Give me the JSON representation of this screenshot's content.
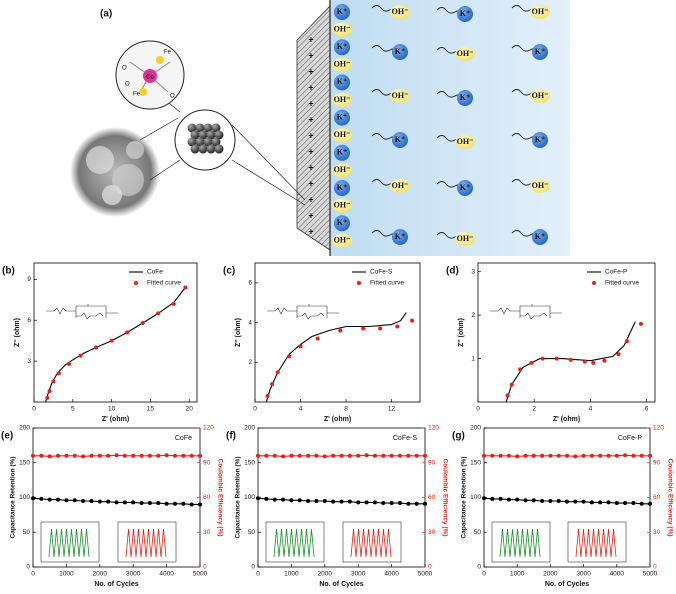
{
  "diagram": {
    "label": "(a)",
    "cation": "K⁺",
    "anion": "OH⁻",
    "atoms": [
      "O",
      "Fe",
      "Co",
      "Fe",
      "O",
      "O"
    ]
  },
  "chart_data": [
    {
      "type": "line",
      "label": "(b)",
      "xlabel": "Z' (ohm)",
      "ylabel": "Z'' (ohm)",
      "xlim": [
        0,
        21
      ],
      "ylim": [
        0,
        10.2
      ],
      "xticks": [
        0,
        5,
        10,
        15,
        20
      ],
      "yticks": [
        3,
        6,
        9
      ],
      "legend": "upper right",
      "series": [
        {
          "name": "CoFe",
          "color": "#000000",
          "style": "line",
          "x": [
            1.5,
            1.8,
            2.3,
            3,
            4,
            5,
            6.5,
            8,
            10,
            12,
            14,
            16,
            18,
            19.5
          ],
          "values": [
            0,
            0.6,
            1.4,
            2.1,
            2.7,
            3.1,
            3.6,
            4,
            4.5,
            5.1,
            5.8,
            6.5,
            7.3,
            8.4
          ]
        },
        {
          "name": "Fitted curve",
          "color": "#e32119",
          "style": "markers",
          "x": [
            1.7,
            2,
            2.5,
            3.2,
            4.5,
            6,
            8,
            10,
            12,
            14,
            16,
            18,
            19.5
          ],
          "values": [
            0.3,
            0.8,
            1.5,
            2.1,
            2.8,
            3.4,
            4,
            4.5,
            5.1,
            5.8,
            6.5,
            7.2,
            8.4
          ]
        }
      ]
    },
    {
      "type": "line",
      "label": "(c)",
      "xlabel": "Z' (ohm)",
      "ylabel": "Z'' (ohm)",
      "xlim": [
        0,
        14.5
      ],
      "ylim": [
        0,
        7
      ],
      "xticks": [
        0,
        4,
        8,
        12
      ],
      "yticks": [
        2,
        4,
        6
      ],
      "legend": "upper right",
      "series": [
        {
          "name": "CoFe-S",
          "color": "#000000",
          "style": "line",
          "x": [
            1,
            1.3,
            2,
            3,
            4,
            5,
            6.5,
            8,
            10,
            12,
            12.8,
            13.3
          ],
          "values": [
            0,
            0.6,
            1.5,
            2.4,
            2.9,
            3.3,
            3.6,
            3.8,
            3.8,
            3.9,
            4.1,
            4.5
          ]
        },
        {
          "name": "Fitted curve",
          "color": "#e32119",
          "style": "markers",
          "x": [
            1.1,
            1.5,
            2,
            3,
            4,
            5.5,
            7.5,
            9.5,
            11,
            12.5,
            13.8
          ],
          "values": [
            0.3,
            0.9,
            1.5,
            2.3,
            2.8,
            3.2,
            3.6,
            3.7,
            3.7,
            3.8,
            4.1
          ]
        }
      ]
    },
    {
      "type": "line",
      "label": "(d)",
      "xlabel": "Z' (ohm)",
      "ylabel": "Z'' (ohm)",
      "xlim": [
        0,
        6.3
      ],
      "ylim": [
        0,
        3.2
      ],
      "xticks": [
        0,
        2,
        4,
        6
      ],
      "yticks": [
        1,
        2,
        3
      ],
      "legend": "upper right",
      "series": [
        {
          "name": "CoFe-P",
          "color": "#000000",
          "style": "line",
          "x": [
            1,
            1.2,
            1.6,
            2.2,
            3,
            4,
            4.8,
            5.2,
            5.6
          ],
          "values": [
            0,
            0.4,
            0.8,
            1,
            1,
            0.95,
            1.05,
            1.3,
            1.85
          ]
        },
        {
          "name": "Fitted curve",
          "color": "#e32119",
          "style": "markers",
          "x": [
            1.05,
            1.2,
            1.5,
            1.9,
            2.3,
            2.8,
            3.3,
            3.8,
            4.1,
            4.5,
            5,
            5.3,
            5.8
          ],
          "values": [
            0.15,
            0.4,
            0.75,
            0.9,
            1,
            1,
            0.97,
            0.93,
            0.9,
            0.95,
            1.1,
            1.4,
            1.8
          ]
        }
      ]
    },
    {
      "type": "dual",
      "label": "(e)",
      "annotation": "CoFe",
      "xlabel": "No. of Cycles",
      "ylabel": "Capacitance Retention (%)",
      "y2label": "Coulombic Efficiency (%)",
      "xlim": [
        0,
        5000
      ],
      "ylim": [
        0,
        200
      ],
      "y2lim": [
        0,
        120
      ],
      "xticks": [
        0,
        1000,
        2000,
        3000,
        4000,
        5000
      ],
      "yticks": [
        0,
        50,
        100,
        150,
        200
      ],
      "y2ticks": [
        0,
        30,
        60,
        90,
        120
      ],
      "x": [
        0,
        250,
        500,
        750,
        1000,
        1250,
        1500,
        1750,
        2000,
        2250,
        2500,
        2750,
        3000,
        3250,
        3500,
        3750,
        4000,
        4250,
        4500,
        4750,
        5000
      ],
      "series": [
        {
          "color": "#000000",
          "style": "line-markers",
          "values": [
            99,
            98,
            97,
            97,
            96,
            96,
            95,
            95,
            94,
            94,
            93,
            93,
            93,
            92,
            92,
            92,
            91,
            91,
            91,
            90,
            90
          ]
        },
        {
          "color": "#e32119",
          "style": "line-markers",
          "axis": "y2",
          "values": [
            96,
            96,
            95.5,
            96,
            96,
            96,
            95.5,
            96,
            96,
            96,
            96.5,
            96,
            96,
            96,
            96,
            96,
            96.5,
            96,
            96,
            96,
            96
          ]
        }
      ]
    },
    {
      "type": "dual",
      "label": "(f)",
      "annotation": "CoFe-S",
      "xlabel": "No. of Cycles",
      "ylabel": "Capacitance Retention (%)",
      "y2label": "Coulombic Efficiency (%)",
      "xlim": [
        0,
        5000
      ],
      "ylim": [
        0,
        200
      ],
      "y2lim": [
        0,
        120
      ],
      "xticks": [
        0,
        1000,
        2000,
        3000,
        4000,
        5000
      ],
      "yticks": [
        0,
        50,
        100,
        150,
        200
      ],
      "y2ticks": [
        0,
        30,
        60,
        90,
        120
      ],
      "x": [
        0,
        250,
        500,
        750,
        1000,
        1250,
        1500,
        1750,
        2000,
        2250,
        2500,
        2750,
        3000,
        3250,
        3500,
        3750,
        4000,
        4250,
        4500,
        4750,
        5000
      ],
      "series": [
        {
          "color": "#000000",
          "style": "line-markers",
          "values": [
            99,
            98,
            97,
            97,
            96,
            96,
            95,
            95,
            95,
            94,
            94,
            94,
            93,
            93,
            93,
            92,
            92,
            92,
            91,
            91,
            91
          ]
        },
        {
          "color": "#e32119",
          "style": "line-markers",
          "axis": "y2",
          "values": [
            96,
            96,
            96,
            95.5,
            96,
            96,
            96,
            96,
            95.5,
            96,
            96,
            96,
            96,
            96.5,
            96,
            96,
            96,
            96,
            96,
            96,
            96
          ]
        }
      ]
    },
    {
      "type": "dual",
      "label": "(g)",
      "annotation": "CoFe-P",
      "xlabel": "No. of Cycles",
      "ylabel": "Capacitance Retention (%)",
      "y2label": "Coulombic Efficiency (%)",
      "xlim": [
        0,
        5000
      ],
      "ylim": [
        0,
        200
      ],
      "y2lim": [
        0,
        120
      ],
      "xticks": [
        0,
        1000,
        2000,
        3000,
        4000,
        5000
      ],
      "yticks": [
        0,
        50,
        100,
        150,
        200
      ],
      "y2ticks": [
        0,
        30,
        60,
        90,
        120
      ],
      "x": [
        0,
        250,
        500,
        750,
        1000,
        1250,
        1500,
        1750,
        2000,
        2250,
        2500,
        2750,
        3000,
        3250,
        3500,
        3750,
        4000,
        4250,
        4500,
        4750,
        5000
      ],
      "series": [
        {
          "color": "#000000",
          "style": "line-markers",
          "values": [
            99,
            98,
            98,
            97,
            97,
            96,
            96,
            95,
            95,
            95,
            94,
            94,
            94,
            93,
            93,
            93,
            92,
            92,
            92,
            91,
            91
          ]
        },
        {
          "color": "#e32119",
          "style": "line-markers",
          "axis": "y2",
          "values": [
            96,
            96,
            96,
            96,
            95.5,
            96,
            96,
            96,
            96,
            96,
            96,
            95.5,
            96,
            96,
            96,
            96,
            96,
            96.5,
            96,
            96,
            96
          ]
        }
      ]
    }
  ]
}
